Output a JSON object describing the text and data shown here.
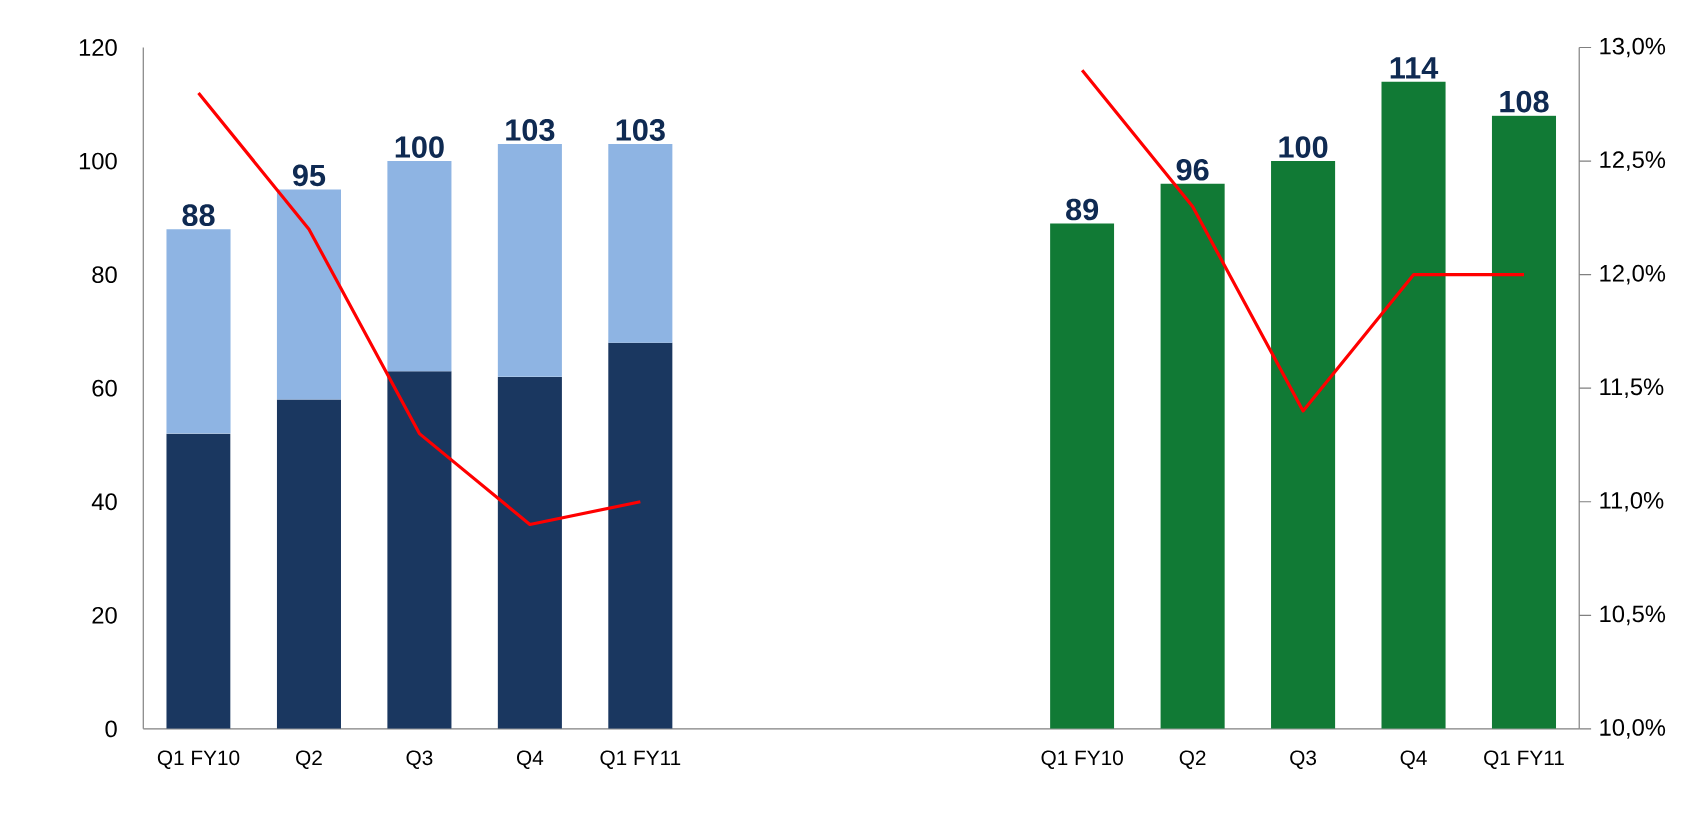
{
  "chart_data": {
    "type": "bar",
    "stacked": true,
    "categories": [
      "Q1 FY10",
      "Q2",
      "Q3",
      "Q4",
      "Q1 FY11",
      null,
      null,
      null,
      "Q1 FY10",
      "Q2",
      "Q3",
      "Q4",
      "Q1 FY11"
    ],
    "series": [
      {
        "color": "#1a3760",
        "values": [
          52,
          58,
          63,
          62,
          68,
          null,
          null,
          null,
          null,
          null,
          null,
          null,
          null
        ]
      },
      {
        "color": "#8eb4e3",
        "values": [
          36,
          37,
          37,
          41,
          35,
          null,
          null,
          null,
          null,
          null,
          null,
          null,
          null
        ]
      },
      {
        "color": "#117a35",
        "values": [
          null,
          null,
          null,
          null,
          null,
          null,
          null,
          null,
          89,
          96,
          100,
          114,
          108
        ]
      },
      {
        "type": "line",
        "axis": "y2",
        "color": "#ff0000",
        "values": [
          12.8,
          12.2,
          11.3,
          10.9,
          11.0,
          null,
          null,
          null,
          null,
          null,
          null,
          null,
          null
        ]
      },
      {
        "type": "line",
        "axis": "y2",
        "color": "#ff0000",
        "values": [
          null,
          null,
          null,
          null,
          null,
          null,
          null,
          null,
          12.9,
          12.3,
          11.4,
          12.0,
          12.0
        ]
      }
    ],
    "totals": [
      "88",
      "95",
      "100",
      "103",
      "103",
      null,
      null,
      null,
      "89",
      "96",
      "100",
      "114",
      "108"
    ],
    "ylim": [
      0,
      120
    ],
    "yticks": [
      0,
      20,
      40,
      60,
      80,
      100,
      120
    ],
    "y2lim": [
      10,
      13
    ],
    "y2ticks": [
      {
        "value": 10,
        "label": "10,0%"
      },
      {
        "value": 10.5,
        "label": "10,5%"
      },
      {
        "value": 11,
        "label": "11,0%"
      },
      {
        "value": 11.5,
        "label": "11,5%"
      },
      {
        "value": 12,
        "label": "12,0%"
      },
      {
        "value": 12.5,
        "label": "12,5%"
      },
      {
        "value": 13,
        "label": "13,0%"
      }
    ]
  }
}
